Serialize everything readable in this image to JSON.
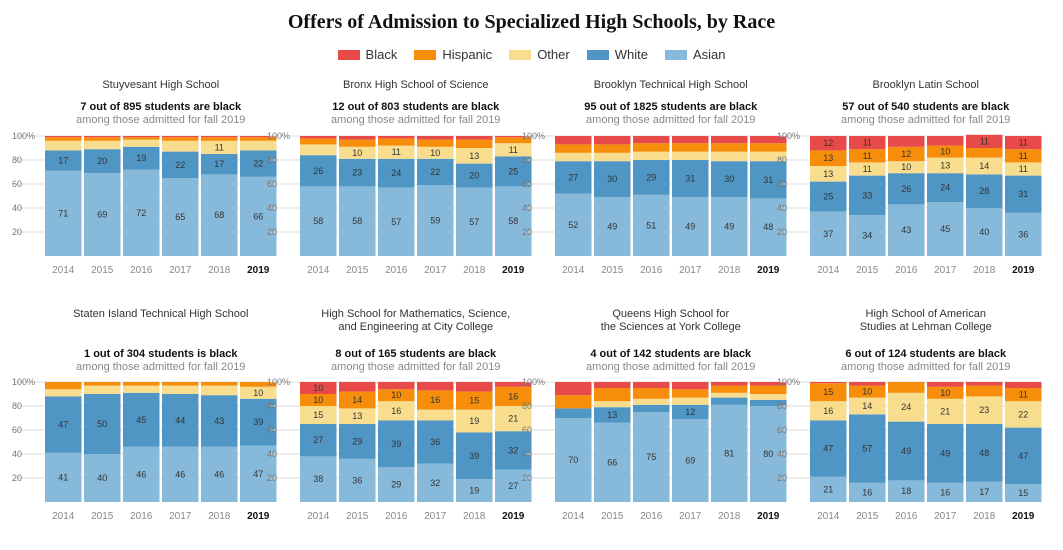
{
  "title": "Offers of Admission to Specialized High Schools, by Race",
  "legend": [
    {
      "label": "Black",
      "color": "#e84a4a"
    },
    {
      "label": "Hispanic",
      "color": "#f68d0b"
    },
    {
      "label": "Other",
      "color": "#f7dd8d"
    },
    {
      "label": "White",
      "color": "#4f96c5"
    },
    {
      "label": "Asian",
      "color": "#87b9da"
    }
  ],
  "chart_data": [
    {
      "type": "bar",
      "title": "Stuyvesant High School",
      "summary_bold": "7 out of 895 students are black",
      "summary_sub": "among those admitted for fall 2019",
      "categories": [
        "2014",
        "2015",
        "2016",
        "2017",
        "2018",
        "2019"
      ],
      "ylim": [
        0,
        100
      ],
      "yticks": [
        "100%",
        "80",
        "60",
        "40",
        "20"
      ],
      "series": [
        {
          "name": "Asian",
          "values": [
            71,
            69,
            72,
            65,
            68,
            66
          ],
          "labels": [
            "71",
            "69",
            "72",
            "65",
            "68",
            "66"
          ]
        },
        {
          "name": "White",
          "values": [
            17,
            20,
            19,
            22,
            17,
            22
          ],
          "labels": [
            "17",
            "20",
            "19",
            "22",
            "17",
            "22"
          ]
        },
        {
          "name": "Other",
          "values": [
            8,
            7,
            6,
            9,
            11,
            8
          ],
          "labels": [
            "",
            "",
            "",
            "",
            "11",
            ""
          ]
        },
        {
          "name": "Hispanic",
          "values": [
            3,
            3,
            2,
            3,
            3,
            3
          ],
          "labels": [
            "",
            "",
            "",
            "",
            "",
            ""
          ]
        },
        {
          "name": "Black",
          "values": [
            1,
            1,
            1,
            1,
            1,
            1
          ],
          "labels": [
            "",
            "",
            "",
            "",
            "",
            ""
          ]
        }
      ]
    },
    {
      "type": "bar",
      "title": "Bronx High School of Science",
      "summary_bold": "12 out of 803 students are black",
      "summary_sub": "among those admitted for fall 2019",
      "categories": [
        "2014",
        "2015",
        "2016",
        "2017",
        "2018",
        "2019"
      ],
      "ylim": [
        0,
        100
      ],
      "yticks": [
        "100%",
        "80",
        "60",
        "40",
        "20"
      ],
      "series": [
        {
          "name": "Asian",
          "values": [
            58,
            58,
            57,
            59,
            57,
            58
          ],
          "labels": [
            "58",
            "58",
            "57",
            "59",
            "57",
            "58"
          ]
        },
        {
          "name": "White",
          "values": [
            26,
            23,
            24,
            22,
            20,
            25
          ],
          "labels": [
            "26",
            "23",
            "24",
            "22",
            "20",
            "25"
          ]
        },
        {
          "name": "Other",
          "values": [
            9,
            10,
            11,
            10,
            13,
            11
          ],
          "labels": [
            "",
            "10",
            "11",
            "10",
            "13",
            "11"
          ]
        },
        {
          "name": "Hispanic",
          "values": [
            5,
            6,
            6,
            6,
            7,
            5
          ],
          "labels": [
            "",
            "",
            "",
            "",
            "",
            ""
          ]
        },
        {
          "name": "Black",
          "values": [
            2,
            3,
            2,
            3,
            3,
            1
          ],
          "labels": [
            "",
            "",
            "",
            "",
            "",
            ""
          ]
        }
      ]
    },
    {
      "type": "bar",
      "title": "Brooklyn Technical High School",
      "summary_bold": "95 out of 1825 students are black",
      "summary_sub": "among those admitted for fall 2019",
      "categories": [
        "2014",
        "2015",
        "2016",
        "2017",
        "2018",
        "2019"
      ],
      "ylim": [
        0,
        100
      ],
      "yticks": [
        "100%",
        "80",
        "60",
        "40",
        "20"
      ],
      "series": [
        {
          "name": "Asian",
          "values": [
            52,
            49,
            51,
            49,
            49,
            48
          ],
          "labels": [
            "52",
            "49",
            "51",
            "49",
            "49",
            "48"
          ]
        },
        {
          "name": "White",
          "values": [
            27,
            30,
            29,
            31,
            30,
            31
          ],
          "labels": [
            "27",
            "30",
            "29",
            "31",
            "30",
            "31"
          ]
        },
        {
          "name": "Other",
          "values": [
            7,
            7,
            7,
            7,
            8,
            8
          ],
          "labels": [
            "",
            "",
            "",
            "",
            "",
            ""
          ]
        },
        {
          "name": "Hispanic",
          "values": [
            7,
            7,
            7,
            7,
            7,
            7
          ],
          "labels": [
            "",
            "",
            "",
            "",
            "",
            ""
          ]
        },
        {
          "name": "Black",
          "values": [
            7,
            7,
            6,
            6,
            6,
            6
          ],
          "labels": [
            "",
            "",
            "",
            "",
            "",
            ""
          ]
        }
      ]
    },
    {
      "type": "bar",
      "title": "Brooklyn Latin School",
      "summary_bold": "57 out of 540 students are black",
      "summary_sub": "among those admitted for fall 2019",
      "categories": [
        "2014",
        "2015",
        "2016",
        "2017",
        "2018",
        "2019"
      ],
      "ylim": [
        0,
        100
      ],
      "yticks": [
        "100%",
        "80",
        "60",
        "40",
        "20"
      ],
      "series": [
        {
          "name": "Asian",
          "values": [
            37,
            34,
            43,
            45,
            40,
            36
          ],
          "labels": [
            "37",
            "34",
            "43",
            "45",
            "40",
            "36"
          ]
        },
        {
          "name": "White",
          "values": [
            25,
            33,
            26,
            24,
            28,
            31
          ],
          "labels": [
            "25",
            "33",
            "26",
            "24",
            "28",
            "31"
          ]
        },
        {
          "name": "Other",
          "values": [
            13,
            11,
            10,
            13,
            14,
            11
          ],
          "labels": [
            "13",
            "11",
            "10",
            "13",
            "14",
            "11"
          ]
        },
        {
          "name": "Hispanic",
          "values": [
            13,
            11,
            12,
            10,
            8,
            11
          ],
          "labels": [
            "13",
            "11",
            "12",
            "10",
            "",
            "11"
          ]
        },
        {
          "name": "Black",
          "values": [
            12,
            11,
            9,
            8,
            11,
            11
          ],
          "labels": [
            "12",
            "11",
            "",
            "",
            "11",
            "11"
          ]
        }
      ]
    },
    {
      "type": "bar",
      "title": "Staten Island Technical High School",
      "summary_bold": "1 out of 304 students is black",
      "summary_sub": "among those admitted for fall 2019",
      "categories": [
        "2014",
        "2015",
        "2016",
        "2017",
        "2018",
        "2019"
      ],
      "ylim": [
        0,
        100
      ],
      "yticks": [
        "100%",
        "80",
        "60",
        "40",
        "20"
      ],
      "series": [
        {
          "name": "Asian",
          "values": [
            41,
            40,
            46,
            46,
            46,
            47
          ],
          "labels": [
            "41",
            "40",
            "46",
            "46",
            "46",
            "47"
          ]
        },
        {
          "name": "White",
          "values": [
            47,
            50,
            45,
            44,
            43,
            39
          ],
          "labels": [
            "47",
            "50",
            "45",
            "44",
            "43",
            "39"
          ]
        },
        {
          "name": "Other",
          "values": [
            6,
            7,
            6,
            7,
            8,
            10
          ],
          "labels": [
            "",
            "",
            "",
            "",
            "",
            "10"
          ]
        },
        {
          "name": "Hispanic",
          "values": [
            6,
            3,
            3,
            3,
            3,
            4
          ],
          "labels": [
            "",
            "",
            "",
            "",
            "",
            ""
          ]
        },
        {
          "name": "Black",
          "values": [
            0,
            0,
            0,
            0,
            0,
            0
          ],
          "labels": [
            "",
            "",
            "",
            "",
            "",
            ""
          ]
        }
      ]
    },
    {
      "type": "bar",
      "title": "High School for Mathematics, Science,",
      "title2": "and Engineering at City College",
      "summary_bold": "8 out of 165 students are black",
      "summary_sub": "among those admitted for fall 2019",
      "categories": [
        "2014",
        "2015",
        "2016",
        "2017",
        "2018",
        "2019"
      ],
      "ylim": [
        0,
        100
      ],
      "yticks": [
        "100%",
        "80",
        "60",
        "40",
        "20"
      ],
      "series": [
        {
          "name": "Asian",
          "values": [
            38,
            36,
            29,
            32,
            19,
            27
          ],
          "labels": [
            "38",
            "36",
            "29",
            "32",
            "19",
            "27"
          ]
        },
        {
          "name": "White",
          "values": [
            27,
            29,
            39,
            36,
            39,
            32
          ],
          "labels": [
            "27",
            "29",
            "39",
            "36",
            "39",
            "32"
          ]
        },
        {
          "name": "Other",
          "values": [
            15,
            13,
            16,
            9,
            19,
            21
          ],
          "labels": [
            "15",
            "13",
            "16",
            "",
            "19",
            "21"
          ]
        },
        {
          "name": "Hispanic",
          "values": [
            10,
            14,
            10,
            16,
            15,
            16
          ],
          "labels": [
            "10",
            "14",
            "10",
            "16",
            "15",
            "16"
          ]
        },
        {
          "name": "Black",
          "values": [
            10,
            8,
            6,
            7,
            8,
            4
          ],
          "labels": [
            "10",
            "",
            "",
            "",
            "",
            ""
          ]
        }
      ]
    },
    {
      "type": "bar",
      "title": "Queens High School for",
      "title2": "the Sciences at York College",
      "summary_bold": "4 out of 142 students are black",
      "summary_sub": "among those admitted for fall 2019",
      "categories": [
        "2014",
        "2015",
        "2016",
        "2017",
        "2018",
        "2019"
      ],
      "ylim": [
        0,
        100
      ],
      "yticks": [
        "100%",
        "80",
        "60",
        "40",
        "20"
      ],
      "series": [
        {
          "name": "Asian",
          "values": [
            70,
            66,
            75,
            69,
            81,
            80
          ],
          "labels": [
            "70",
            "66",
            "75",
            "69",
            "81",
            "80"
          ]
        },
        {
          "name": "White",
          "values": [
            8,
            13,
            6,
            12,
            6,
            5
          ],
          "labels": [
            "",
            "13",
            "",
            "12",
            "",
            ""
          ]
        },
        {
          "name": "Other",
          "values": [
            0,
            5,
            5,
            6,
            4,
            5
          ],
          "labels": [
            "",
            "",
            "",
            "",
            "",
            ""
          ]
        },
        {
          "name": "Hispanic",
          "values": [
            11,
            11,
            9,
            7,
            6,
            7
          ],
          "labels": [
            "",
            "",
            "",
            "",
            "",
            ""
          ]
        },
        {
          "name": "Black",
          "values": [
            11,
            5,
            5,
            6,
            3,
            3
          ],
          "labels": [
            "",
            "",
            "",
            "",
            "",
            ""
          ]
        }
      ]
    },
    {
      "type": "bar",
      "title": "High School of American",
      "title2": "Studies at Lehman College",
      "summary_bold": "6 out of 124 students are black",
      "summary_sub": "among those admitted for fall 2019",
      "categories": [
        "2014",
        "2015",
        "2016",
        "2017",
        "2018",
        "2019"
      ],
      "ylim": [
        0,
        100
      ],
      "yticks": [
        "100%",
        "80",
        "60",
        "40",
        "20"
      ],
      "series": [
        {
          "name": "Asian",
          "values": [
            21,
            16,
            18,
            16,
            17,
            15
          ],
          "labels": [
            "21",
            "16",
            "18",
            "16",
            "17",
            "15"
          ]
        },
        {
          "name": "White",
          "values": [
            47,
            57,
            49,
            49,
            48,
            47
          ],
          "labels": [
            "47",
            "57",
            "49",
            "49",
            "48",
            "47"
          ]
        },
        {
          "name": "Other",
          "values": [
            16,
            14,
            24,
            21,
            23,
            22
          ],
          "labels": [
            "16",
            "14",
            "24",
            "21",
            "23",
            "22"
          ]
        },
        {
          "name": "Hispanic",
          "values": [
            15,
            10,
            9,
            10,
            9,
            11
          ],
          "labels": [
            "15",
            "10",
            "",
            "10",
            "",
            "11"
          ]
        },
        {
          "name": "Black",
          "values": [
            1,
            3,
            0,
            4,
            3,
            5
          ],
          "labels": [
            "",
            "",
            "",
            "",
            "",
            ""
          ]
        }
      ]
    }
  ]
}
